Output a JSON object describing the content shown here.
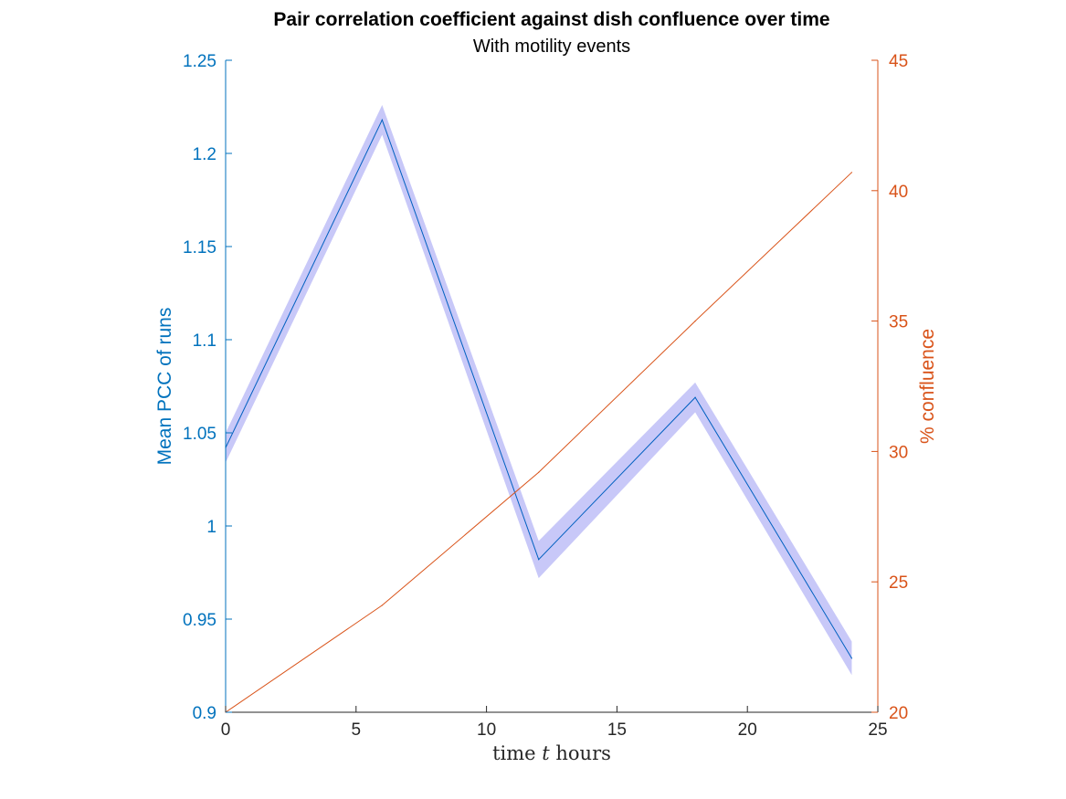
{
  "chart_data": {
    "type": "line",
    "title": "Pair correlation coefficient against dish confluence over time",
    "subtitle": "With motility events",
    "xlabel": {
      "before": "time ",
      "var": "t",
      "after": " hours"
    },
    "ylabel_left": "Mean PCC of runs",
    "ylabel_right": "% confluence",
    "xlim": [
      0,
      25
    ],
    "ylim_left": [
      0.9,
      1.25
    ],
    "ylim_right": [
      20,
      45
    ],
    "x_ticks": [
      0,
      5,
      10,
      15,
      20,
      25
    ],
    "y_left_ticks": [
      0.9,
      0.95,
      1,
      1.05,
      1.1,
      1.15,
      1.2,
      1.25
    ],
    "y_right_ticks": [
      20,
      25,
      30,
      35,
      40,
      45
    ],
    "x_tick_labels": [
      "0",
      "5",
      "10",
      "15",
      "20",
      "25"
    ],
    "y_left_tick_labels": [
      "0.9",
      "0.95",
      "1",
      "1.05",
      "1.1",
      "1.15",
      "1.2",
      "1.25"
    ],
    "y_right_tick_labels": [
      "20",
      "25",
      "30",
      "35",
      "40",
      "45"
    ],
    "grid": false,
    "series": [
      {
        "axis": "left",
        "color": "#0060c0",
        "band_color": "#c8c8f8",
        "x": [
          0,
          6,
          12,
          18,
          24
        ],
        "values": [
          1.042,
          1.218,
          0.982,
          1.069,
          0.929
        ],
        "lower": [
          1.034,
          1.21,
          0.972,
          1.061,
          0.92
        ],
        "upper": [
          1.05,
          1.226,
          0.992,
          1.077,
          0.938
        ]
      },
      {
        "axis": "right",
        "color": "#d95319",
        "x": [
          0,
          6,
          12,
          18,
          24
        ],
        "values": [
          20.0,
          24.1,
          29.2,
          35.0,
          40.7
        ]
      }
    ],
    "colors": {
      "left_axis": "#0072bd",
      "right_axis": "#d95319",
      "x_axis": "#262626"
    }
  }
}
